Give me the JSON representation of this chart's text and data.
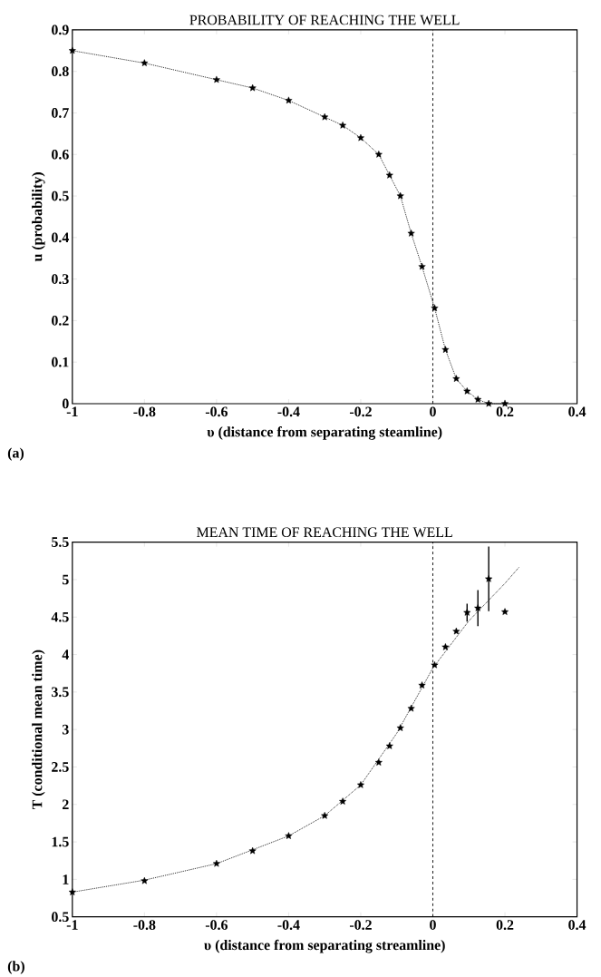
{
  "chart_data": [
    {
      "type": "line",
      "title": "PROBABILITY OF REACHING THE WELL",
      "xlabel": "υ (distance from separating steamline)",
      "ylabel": "u  (probability)",
      "annotations": [
        "(a)"
      ],
      "xlim": [
        -1,
        0.4
      ],
      "ylim": [
        0,
        0.9
      ],
      "xticks": [
        -1,
        -0.8,
        -0.6,
        -0.4,
        -0.2,
        0,
        0.2,
        0.4
      ],
      "yticks": [
        0,
        0.1,
        0.2,
        0.3,
        0.4,
        0.5,
        0.6,
        0.7,
        0.8,
        0.9
      ],
      "marker": "star",
      "line_style": "dotted",
      "ref_lines": [
        {
          "axis": "x",
          "value": 0,
          "line_style": "dashed"
        }
      ],
      "series": [
        {
          "color": "#000000",
          "x": [
            -1,
            -0.8,
            -0.6,
            -0.5,
            -0.4,
            -0.3,
            -0.25,
            -0.2,
            -0.15,
            -0.12,
            -0.09,
            -0.06,
            -0.03,
            0.005,
            0.035,
            0.065,
            0.095,
            0.125,
            0.155,
            0.2
          ],
          "values": [
            0.85,
            0.82,
            0.78,
            0.76,
            0.73,
            0.69,
            0.67,
            0.64,
            0.6,
            0.55,
            0.5,
            0.41,
            0.33,
            0.23,
            0.13,
            0.06,
            0.03,
            0.01,
            0,
            0
          ]
        }
      ]
    },
    {
      "type": "scatter",
      "title": "MEAN TIME OF REACHING THE WELL",
      "xlabel": "υ (distance from separating streamline)",
      "ylabel": "T  (conditional mean time)",
      "annotations": [
        "(b)"
      ],
      "xlim": [
        -1,
        0.4
      ],
      "ylim": [
        0.5,
        5.5
      ],
      "xticks": [
        -1,
        -0.8,
        -0.6,
        -0.4,
        -0.2,
        0,
        0.2,
        0.4
      ],
      "yticks": [
        0.5,
        1,
        1.5,
        2,
        2.5,
        3,
        3.5,
        4,
        4.5,
        5,
        5.5
      ],
      "marker": "star",
      "line_style": "dotted",
      "ref_lines": [
        {
          "axis": "x",
          "value": 0,
          "line_style": "dashed"
        }
      ],
      "series": [
        {
          "color": "#000000",
          "x": [
            -1,
            -0.8,
            -0.6,
            -0.5,
            -0.4,
            -0.3,
            -0.25,
            -0.2,
            -0.15,
            -0.12,
            -0.09,
            -0.06,
            -0.03,
            0.005,
            0.035,
            0.065,
            0.095,
            0.125,
            0.155,
            0.2
          ],
          "values": [
            0.83,
            0.98,
            1.21,
            1.38,
            1.58,
            1.85,
            2.04,
            2.26,
            2.56,
            2.78,
            3.02,
            3.28,
            3.59,
            3.86,
            4.1,
            4.31,
            4.56,
            4.62,
            5.01,
            4.57
          ],
          "errors": [
            null,
            null,
            null,
            null,
            null,
            null,
            null,
            null,
            null,
            null,
            null,
            null,
            null,
            null,
            null,
            null,
            0.12,
            0.24,
            0.43,
            null
          ]
        },
        {
          "type": "line",
          "marker": "none",
          "color": "#000000",
          "x": [
            -1,
            -0.8,
            -0.6,
            -0.4,
            -0.3,
            -0.2,
            -0.1,
            0,
            0.1,
            0.2,
            0.24
          ],
          "values": [
            0.83,
            0.99,
            1.21,
            1.58,
            1.85,
            2.26,
            2.95,
            3.82,
            4.45,
            4.95,
            5.17
          ]
        }
      ]
    }
  ]
}
